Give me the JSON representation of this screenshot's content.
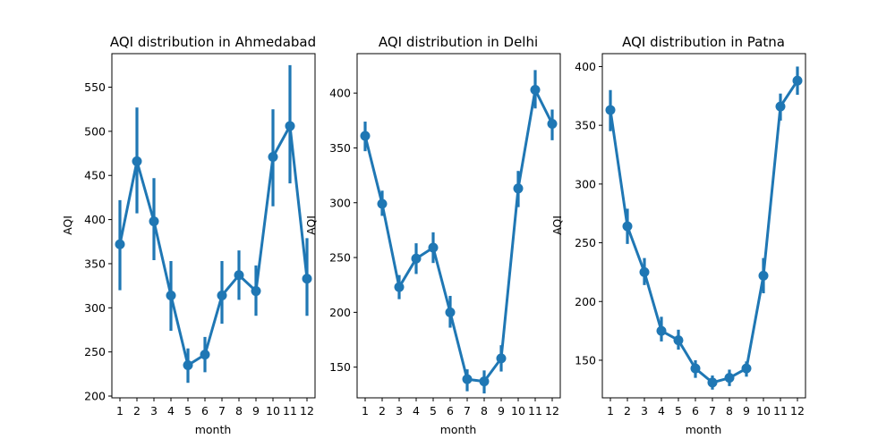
{
  "chart_data": [
    {
      "type": "line",
      "title": "AQI distribution in Ahmedabad",
      "xlabel": "month",
      "ylabel": "AQI",
      "categories": [
        "1",
        "2",
        "3",
        "4",
        "5",
        "6",
        "7",
        "8",
        "9",
        "10",
        "11",
        "12"
      ],
      "values": [
        372,
        466,
        398,
        314,
        235,
        247,
        314,
        337,
        319,
        471,
        506,
        333
      ],
      "error_low": [
        320,
        407,
        354,
        274,
        215,
        227,
        282,
        309,
        291,
        415,
        441,
        291
      ],
      "error_high": [
        422,
        527,
        447,
        353,
        254,
        267,
        353,
        365,
        348,
        525,
        575,
        379
      ],
      "ylim": [
        198,
        588
      ],
      "yticks": [
        200,
        250,
        300,
        350,
        400,
        450,
        500,
        550
      ],
      "color": "#1f77b4"
    },
    {
      "type": "line",
      "title": "AQI distribution in Delhi",
      "xlabel": "month",
      "ylabel": "AQI",
      "categories": [
        "1",
        "2",
        "3",
        "4",
        "5",
        "6",
        "7",
        "8",
        "9",
        "10",
        "11",
        "12"
      ],
      "values": [
        361,
        299,
        223,
        249,
        259,
        200,
        139,
        137,
        158,
        313,
        403,
        372
      ],
      "error_low": [
        347,
        288,
        212,
        235,
        245,
        186,
        128,
        126,
        146,
        296,
        386,
        357
      ],
      "error_high": [
        374,
        311,
        234,
        263,
        273,
        215,
        148,
        147,
        170,
        329,
        421,
        385
      ],
      "ylim": [
        122,
        436
      ],
      "yticks": [
        150,
        200,
        250,
        300,
        350,
        400
      ],
      "color": "#1f77b4"
    },
    {
      "type": "line",
      "title": "AQI distribution in Patna",
      "xlabel": "month",
      "ylabel": "AQI",
      "categories": [
        "1",
        "2",
        "3",
        "4",
        "5",
        "6",
        "7",
        "8",
        "9",
        "10",
        "11",
        "12"
      ],
      "values": [
        363,
        264,
        225,
        175,
        167,
        143,
        131,
        135,
        143,
        222,
        366,
        388
      ],
      "error_low": [
        345,
        249,
        214,
        166,
        159,
        135,
        125,
        128,
        136,
        207,
        354,
        376
      ],
      "error_high": [
        380,
        279,
        237,
        187,
        176,
        150,
        137,
        142,
        149,
        237,
        377,
        400
      ],
      "ylim": [
        118,
        411
      ],
      "yticks": [
        150,
        200,
        250,
        300,
        350,
        400
      ],
      "color": "#1f77b4"
    }
  ]
}
